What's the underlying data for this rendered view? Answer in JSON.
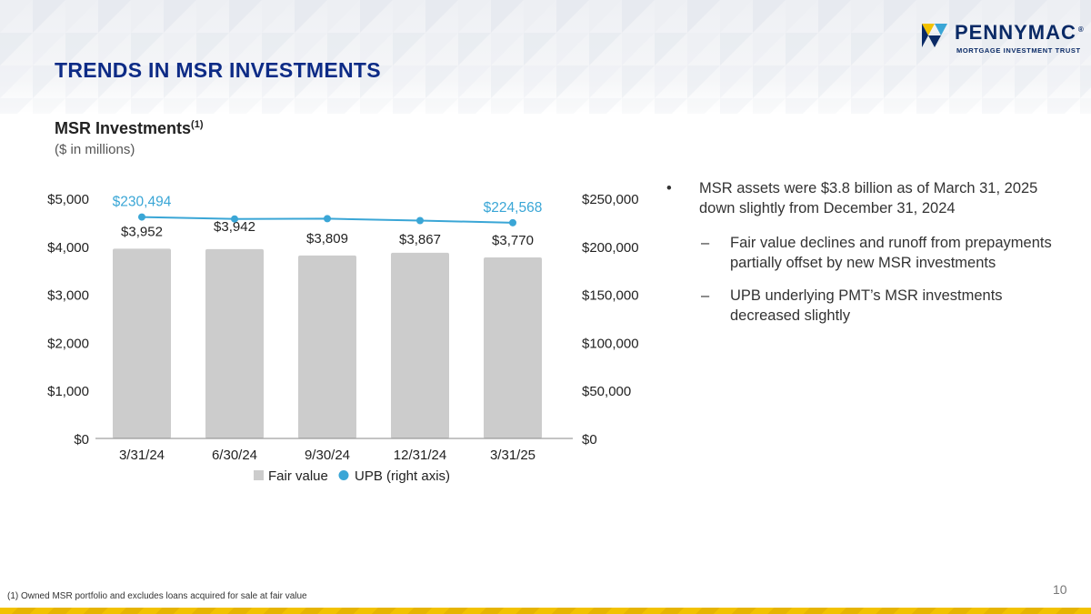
{
  "header": {
    "title": "TRENDS IN MSR INVESTMENTS",
    "logo_name": "PENNYMAC",
    "logo_tm": "®",
    "logo_sub": "MORTGAGE INVESTMENT TRUST"
  },
  "colors": {
    "title": "#0d2b86",
    "bar": "#cccccc",
    "line": "#3aa6d6",
    "line_label": "#3aa6d6",
    "stripe": "#f2c200"
  },
  "chart_data": {
    "type": "bar",
    "title": "MSR Investments",
    "title_footnote": "(1)",
    "subtitle": "($ in millions)",
    "categories": [
      "3/31/24",
      "6/30/24",
      "9/30/24",
      "12/31/24",
      "3/31/25"
    ],
    "series": [
      {
        "name": "Fair value",
        "type": "bar",
        "axis": "left",
        "values": [
          3952,
          3942,
          3809,
          3867,
          3770
        ],
        "labels": [
          "$3,952",
          "$3,942",
          "$3,809",
          "$3,867",
          "$3,770"
        ]
      },
      {
        "name": "UPB (right axis)",
        "type": "line",
        "axis": "right",
        "values": [
          230494,
          228500,
          228800,
          226800,
          224568
        ],
        "labels": [
          "$230,494",
          "",
          "",
          "",
          "$224,568"
        ]
      }
    ],
    "y_left": {
      "range": [
        0,
        5000
      ],
      "ticks": [
        0,
        1000,
        2000,
        3000,
        4000,
        5000
      ],
      "tick_labels": [
        "$0",
        "$1,000",
        "$2,000",
        "$3,000",
        "$4,000",
        "$5,000"
      ]
    },
    "y_right": {
      "range": [
        0,
        250000
      ],
      "ticks": [
        0,
        50000,
        100000,
        150000,
        200000,
        250000
      ],
      "tick_labels": [
        "$0",
        "$50,000",
        "$100,000",
        "$150,000",
        "$200,000",
        "$250,000"
      ]
    },
    "grid": false,
    "legend": "bottom-center"
  },
  "bullets": {
    "main": "MSR assets were $3.8 billion as of March 31, 2025 down slightly from December 31, 2024",
    "main_mark": "•",
    "sub_mark": "–",
    "sub": [
      "Fair value declines and runoff from prepayments partially offset by new MSR investments",
      "UPB underlying PMT’s MSR investments decreased slightly"
    ]
  },
  "footnote": "(1) Owned MSR portfolio and excludes loans acquired for sale at fair value",
  "page_number": "10"
}
